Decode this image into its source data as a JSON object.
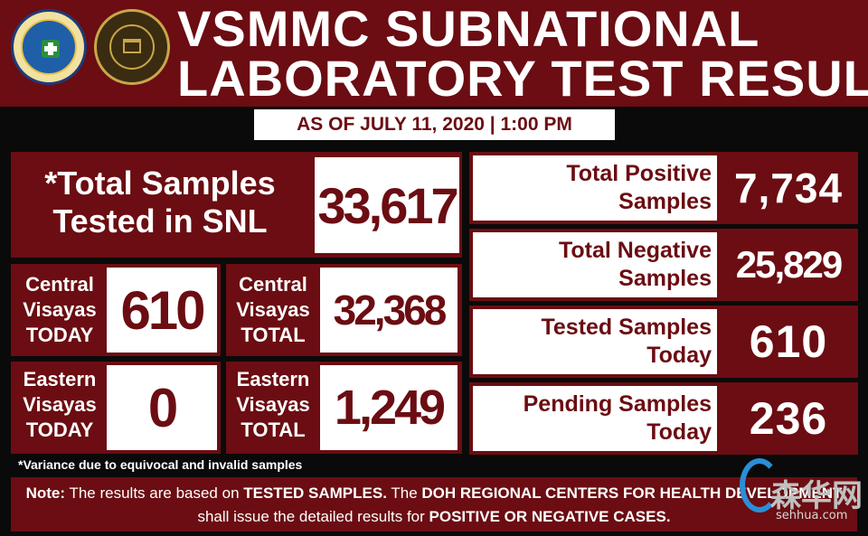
{
  "header": {
    "title_line1": "VSMMC SUBNATIONAL",
    "title_line2": "LABORATORY TEST RESULTS",
    "logos": [
      "doh-seal-icon",
      "vsmmc-seal-icon"
    ]
  },
  "as_of": "AS OF JULY 11, 2020 | 1:00 PM",
  "total_samples": {
    "label": "*Total Samples\nTested in SNL",
    "value": "33,617"
  },
  "central_today": {
    "label": "Central\nVisayas\nTODAY",
    "value": "610"
  },
  "central_total": {
    "label": "Central\nVisayas\nTOTAL",
    "value": "32,368"
  },
  "eastern_today": {
    "label": "Eastern\nVisayas\nTODAY",
    "value": "0"
  },
  "eastern_total": {
    "label": "Eastern\nVisayas\nTOTAL",
    "value": "1,249"
  },
  "positive": {
    "label": "Total Positive\nSamples",
    "value": "7,734"
  },
  "negative": {
    "label": "Total Negative\nSamples",
    "value": "25,829"
  },
  "tested_today": {
    "label": "Tested Samples\nToday",
    "value": "610"
  },
  "pending_today": {
    "label": "Pending Samples\nToday",
    "value": "236"
  },
  "footnote": "*Variance due to equivocal and invalid samples",
  "note": {
    "p1": "Note:",
    "p2": " The results are based on ",
    "p3": "TESTED SAMPLES.",
    "p4": " The ",
    "p5": "DOH REGIONAL CENTERS FOR HEALTH DEVELOPMENT",
    "p6": " shall issue the detailed results for ",
    "p7": "POSITIVE OR NEGATIVE CASES."
  },
  "watermark": {
    "text": "森华网",
    "url": "sehhua.com"
  },
  "colors": {
    "maroon": "#6b0d12",
    "white": "#ffffff",
    "background": "#0a0a0a"
  }
}
